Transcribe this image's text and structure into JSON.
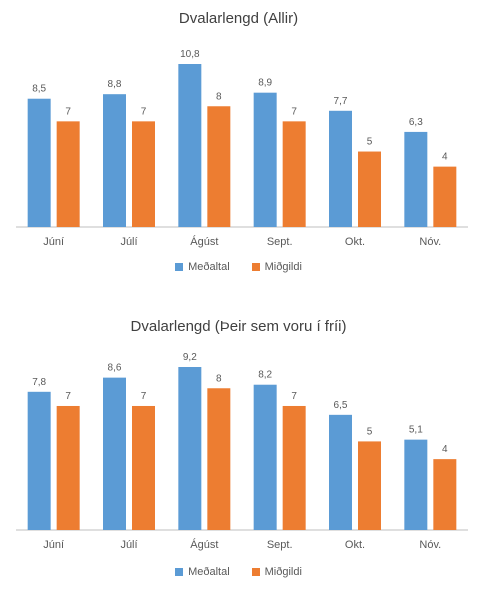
{
  "colors": {
    "mean": "#5b9bd5",
    "median": "#ed7d31",
    "axis": "#bfbfbf",
    "text": "#595959"
  },
  "chart_data": [
    {
      "type": "bar",
      "title": "Dvalarlengd (Allir)",
      "categories": [
        "Júní",
        "Júlí",
        "Ágúst",
        "Sept.",
        "Okt.",
        "Nóv."
      ],
      "series": [
        {
          "name": "Meðaltal",
          "values": [
            8.5,
            8.8,
            10.8,
            8.9,
            7.7,
            6.3
          ],
          "labels": [
            "8,5",
            "8,8",
            "10,8",
            "8,9",
            "7,7",
            "6,3"
          ]
        },
        {
          "name": "Miðgildi",
          "values": [
            7,
            7,
            8,
            7,
            5,
            4
          ],
          "labels": [
            "7",
            "7",
            "8",
            "7",
            "5",
            "4"
          ]
        }
      ],
      "ylim": [
        0,
        10.8
      ],
      "grid": false,
      "legend": "bottom"
    },
    {
      "type": "bar",
      "title": "Dvalarlengd (Þeir sem voru  í fríi)",
      "categories": [
        "Júní",
        "Júlí",
        "Ágúst",
        "Sept.",
        "Okt.",
        "Nóv."
      ],
      "series": [
        {
          "name": "Meðaltal",
          "values": [
            7.8,
            8.6,
            9.2,
            8.2,
            6.5,
            5.1
          ],
          "labels": [
            "7,8",
            "8,6",
            "9,2",
            "8,2",
            "6,5",
            "5,1"
          ]
        },
        {
          "name": "Miðgildi",
          "values": [
            7,
            7,
            8,
            7,
            5,
            4
          ],
          "labels": [
            "7",
            "7",
            "8",
            "7",
            "5",
            "4"
          ]
        }
      ],
      "ylim": [
        0,
        9.2
      ],
      "grid": false,
      "legend": "bottom"
    }
  ]
}
